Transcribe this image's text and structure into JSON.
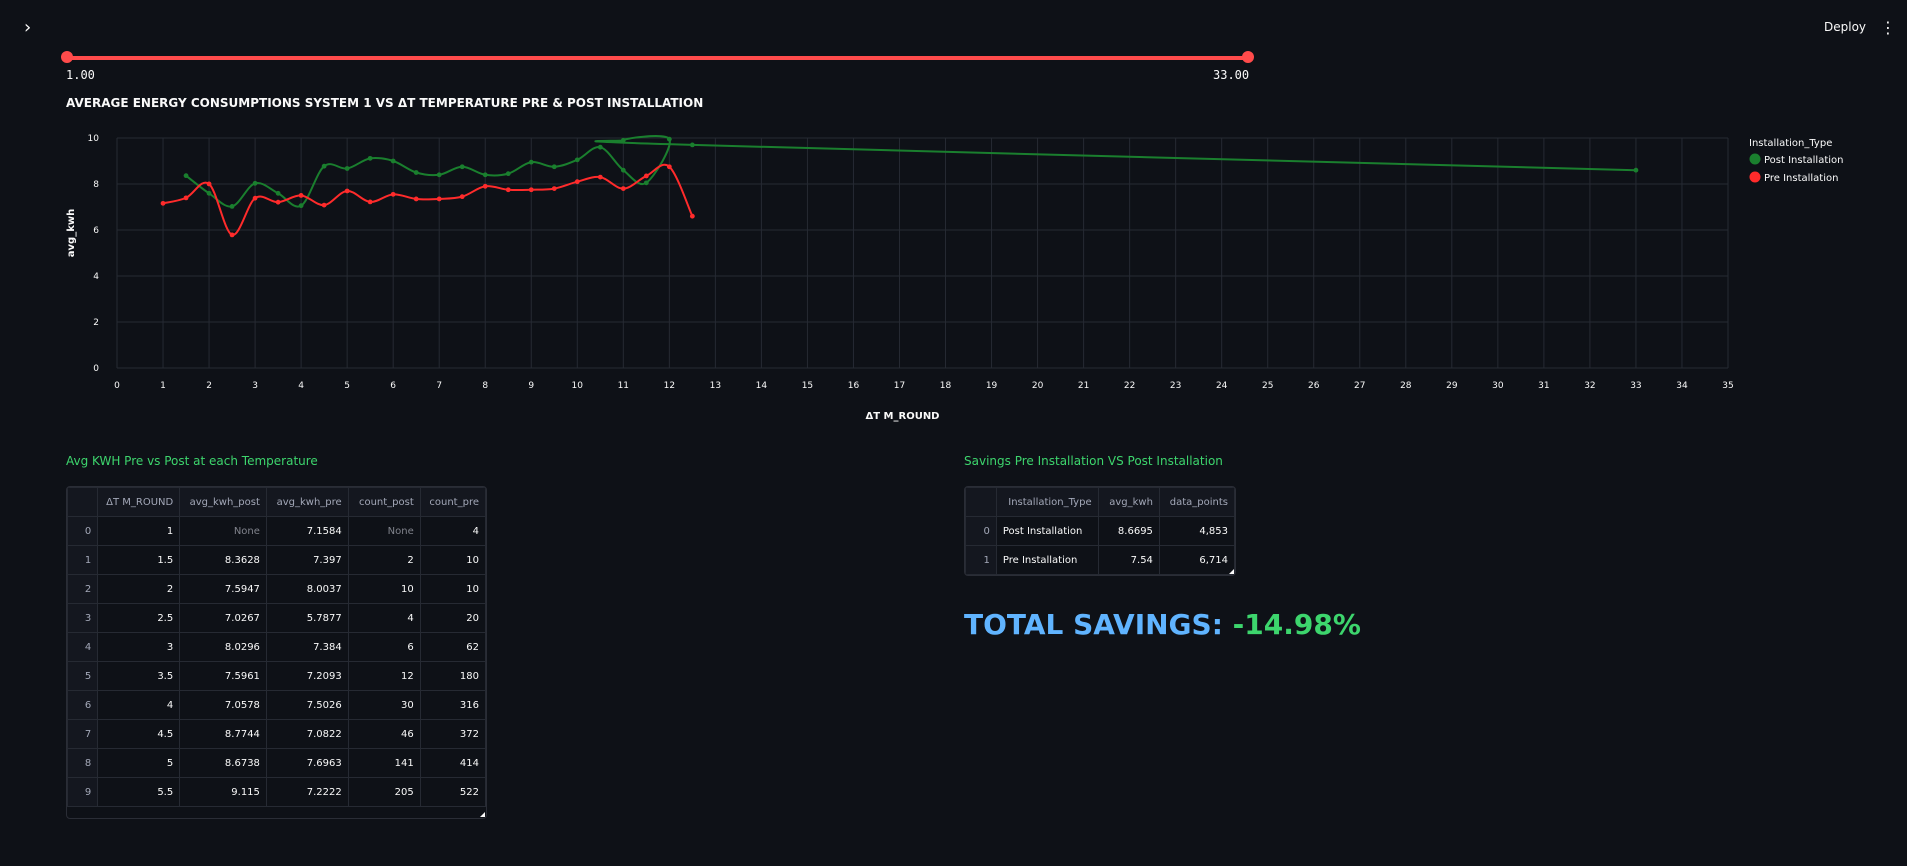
{
  "app": {
    "sidebar_toggle": "›",
    "deploy_label": "Deploy",
    "menu_icon": "⋮"
  },
  "slider": {
    "min_label": "1.00",
    "max_label": "33.00",
    "range": [
      1,
      33
    ],
    "selected": [
      1,
      33
    ],
    "color": "#ff4b4b"
  },
  "chart": {
    "title": "AVERAGE ENERGY CONSUMPTIONS SYSTEM 1 VS ΔT TEMPERATURE PRE & POST INSTALLATION"
  },
  "chart_data": {
    "type": "line",
    "title": "AVERAGE ENERGY CONSUMPTIONS SYSTEM 1 VS ΔT TEMPERATURE PRE & POST INSTALLATION",
    "xlabel": "ΔT M_ROUND",
    "ylabel": "avg_kwh",
    "xlim": [
      0,
      35
    ],
    "ylim": [
      0,
      10
    ],
    "xticks": [
      "0",
      "1",
      "2",
      "3",
      "4",
      "5",
      "6",
      "7",
      "8",
      "9",
      "10",
      "11",
      "12",
      "13",
      "14",
      "15",
      "16",
      "17",
      "18",
      "19",
      "20",
      "21",
      "22",
      "23",
      "24",
      "25",
      "26",
      "27",
      "28",
      "29",
      "30",
      "31",
      "32",
      "33",
      "34",
      "35"
    ],
    "yticks": [
      "0",
      "2",
      "4",
      "6",
      "8",
      "10"
    ],
    "grid": true,
    "legend": {
      "title": "Installation_Type",
      "placement": "right"
    },
    "series": [
      {
        "name": "Post Installation",
        "color": "#1a7f2e",
        "x": [
          1.5,
          2,
          2.5,
          3,
          3.5,
          4,
          4.5,
          5,
          5.5,
          6,
          6.5,
          7,
          7.5,
          8,
          8.5,
          9,
          9.5,
          10,
          10.5,
          11,
          11.5,
          12,
          11,
          12.5,
          33
        ],
        "y": [
          8.3628,
          7.5947,
          7.0267,
          8.0296,
          7.5961,
          7.0578,
          8.7744,
          8.6738,
          9.115,
          9.0,
          8.5,
          8.4,
          8.75,
          8.4,
          8.45,
          8.95,
          8.75,
          9.05,
          9.6,
          8.6,
          8.05,
          9.95,
          9.9,
          9.7,
          8.6
        ]
      },
      {
        "name": "Pre Installation",
        "color": "#ff2b2b",
        "x": [
          1,
          1.5,
          2,
          2.5,
          3,
          3.5,
          4,
          4.5,
          5,
          5.5,
          6,
          6.5,
          7,
          7.5,
          8,
          8.5,
          9,
          9.5,
          10,
          10.5,
          11,
          11.5,
          12,
          12.5
        ],
        "y": [
          7.1584,
          7.397,
          8.0037,
          5.7877,
          7.384,
          7.2093,
          7.5026,
          7.0822,
          7.6963,
          7.2222,
          7.55,
          7.35,
          7.35,
          7.45,
          7.9,
          7.75,
          7.75,
          7.8,
          8.1,
          8.3,
          7.8,
          8.35,
          8.75,
          6.6
        ]
      }
    ]
  },
  "table1": {
    "title": "Avg KWH Pre vs Post at each Temperature",
    "columns": [
      "",
      "ΔT M_ROUND",
      "avg_kwh_post",
      "avg_kwh_pre",
      "count_post",
      "count_pre"
    ],
    "rows": [
      [
        "0",
        "1",
        "None",
        "7.1584",
        "None",
        "4"
      ],
      [
        "1",
        "1.5",
        "8.3628",
        "7.397",
        "2",
        "10"
      ],
      [
        "2",
        "2",
        "7.5947",
        "8.0037",
        "10",
        "10"
      ],
      [
        "3",
        "2.5",
        "7.0267",
        "5.7877",
        "4",
        "20"
      ],
      [
        "4",
        "3",
        "8.0296",
        "7.384",
        "6",
        "62"
      ],
      [
        "5",
        "3.5",
        "7.5961",
        "7.2093",
        "12",
        "180"
      ],
      [
        "6",
        "4",
        "7.0578",
        "7.5026",
        "30",
        "316"
      ],
      [
        "7",
        "4.5",
        "8.7744",
        "7.0822",
        "46",
        "372"
      ],
      [
        "8",
        "5",
        "8.6738",
        "7.6963",
        "141",
        "414"
      ],
      [
        "9",
        "5.5",
        "9.115",
        "7.2222",
        "205",
        "522"
      ]
    ]
  },
  "table2": {
    "title": "Savings Pre Installation VS Post Installation",
    "columns": [
      "",
      "Installation_Type",
      "avg_kwh",
      "data_points"
    ],
    "rows": [
      [
        "0",
        "Post Installation",
        "8.6695",
        "4,853"
      ],
      [
        "1",
        "Pre Installation",
        "7.54",
        "6,714"
      ]
    ]
  },
  "total_savings": {
    "label": "TOTAL SAVINGS:",
    "value": "-14.98%",
    "label_color": "#60b4ff",
    "value_color": "#3dd56d"
  }
}
